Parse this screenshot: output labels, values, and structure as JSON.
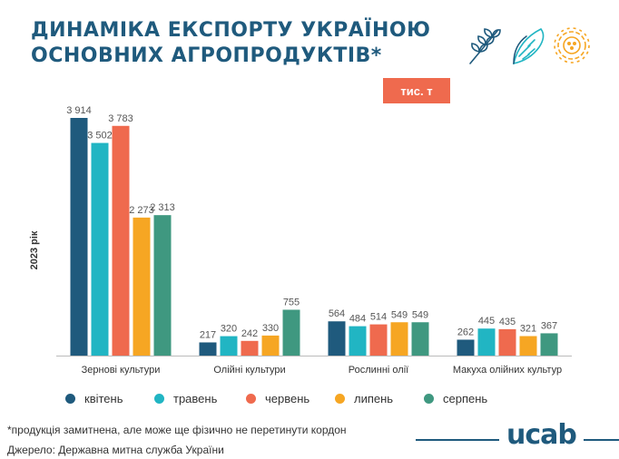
{
  "header": {
    "title_line1": "ДИНАМІКА ЕКСПОРТУ УКРАЇНОЮ",
    "title_line2": "ОСНОВНИХ АГРОПРОДУКТІВ*",
    "unit_badge": "тис. т",
    "icons": [
      "wheat-icon",
      "corn-icon",
      "sunflower-icon"
    ]
  },
  "colors": {
    "title": "#1f5a7d",
    "accent": "#ef6a4e"
  },
  "chart_data": {
    "type": "bar",
    "ylabel": "2023 рік",
    "categories": [
      "Зернові культури",
      "Олійні культури",
      "Рослинні олії",
      "Макуха олійних культур"
    ],
    "series": [
      {
        "name": "квітень",
        "color": "#1f5a7d",
        "values": [
          3914,
          217,
          564,
          262
        ],
        "labels": [
          "3 914",
          "217",
          "564",
          "262"
        ]
      },
      {
        "name": "травень",
        "color": "#21b5c3",
        "values": [
          3502,
          320,
          484,
          445
        ],
        "labels": [
          "3 502",
          "320",
          "484",
          "445"
        ]
      },
      {
        "name": "червень",
        "color": "#ef6a4e",
        "values": [
          3783,
          242,
          514,
          435
        ],
        "labels": [
          "3 783",
          "242",
          "514",
          "435"
        ]
      },
      {
        "name": "липень",
        "color": "#f6a623",
        "values": [
          2273,
          330,
          549,
          321
        ],
        "labels": [
          "2 273",
          "330",
          "549",
          "321"
        ]
      },
      {
        "name": "серпень",
        "color": "#3f9880",
        "values": [
          2313,
          755,
          549,
          367
        ],
        "labels": [
          "2 313",
          "755",
          "549",
          "367"
        ]
      }
    ],
    "ylim": [
      0,
      4000
    ],
    "grid": false,
    "legend_position": "bottom"
  },
  "footer": {
    "footnote": "*продукція замитнена, але може ще фізично не перетинути кордон",
    "source": "Джерело: Державна митна служба України",
    "logo": "ucab"
  }
}
